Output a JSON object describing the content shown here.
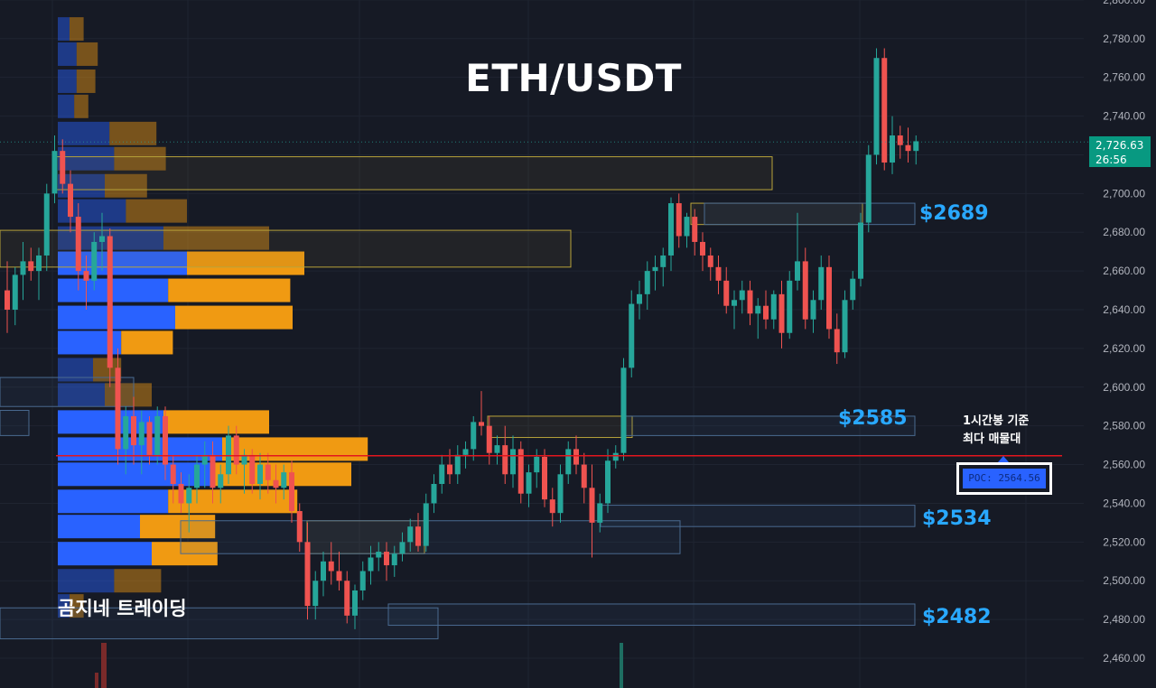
{
  "title": "ETH/USDT",
  "watermark": "곰지네 트레이딩",
  "annotations": {
    "note_line1": "1시간봉 기준",
    "note_line2": "최다 매물대",
    "poc_label": "POC: 2564.56"
  },
  "levels": [
    {
      "label": "$2689",
      "price": 2689
    },
    {
      "label": "$2585",
      "price": 2585
    },
    {
      "label": "$2534",
      "price": 2534
    },
    {
      "label": "$2482",
      "price": 2482
    }
  ],
  "last_price": {
    "value": "2,726.63",
    "countdown": "26:56"
  },
  "colors": {
    "background": "#161a25",
    "up": "#26a69a",
    "down": "#ef5350",
    "accent_blue": "#29a8ff",
    "poc_line": "#e3161e",
    "volume_up": "#2962ff",
    "volume_down": "#f09a12",
    "zone_border_supply": "#b8a33a",
    "zone_border_demand": "#4a6a90",
    "last_price_bg": "#089981"
  },
  "chart_data": {
    "type": "candlestick",
    "title": "ETH/USDT",
    "timeframe_note": "1시간봉 기준",
    "y_axis": {
      "ticks": [
        2460,
        2480,
        2500,
        2520,
        2540,
        2560,
        2580,
        2600,
        2620,
        2640,
        2660,
        2680,
        2700,
        2720,
        2740,
        2760,
        2780,
        2800
      ],
      "tick_labels": [
        "2,460.00",
        "2,480.00",
        "2,500.00",
        "2,520.00",
        "2,540.00",
        "2,560.00",
        "2,580.00",
        "2,600.00",
        "2,620.00",
        "2,640.00",
        "2,660.00",
        "2,680.00",
        "2,700.00",
        "2,720.00",
        "2,740.00",
        "2,760.00",
        "2,780.00",
        "2,800.00"
      ],
      "ylim": [
        2455,
        2800
      ]
    },
    "poc": 2564.56,
    "last_price": 2726.63,
    "candles_ohlc": [
      [
        2650,
        2665,
        2628,
        2640
      ],
      [
        2640,
        2662,
        2632,
        2658
      ],
      [
        2658,
        2675,
        2645,
        2665
      ],
      [
        2665,
        2672,
        2655,
        2660
      ],
      [
        2660,
        2672,
        2645,
        2668
      ],
      [
        2668,
        2705,
        2660,
        2700
      ],
      [
        2700,
        2730,
        2695,
        2722
      ],
      [
        2722,
        2728,
        2700,
        2705
      ],
      [
        2705,
        2712,
        2680,
        2688
      ],
      [
        2688,
        2695,
        2650,
        2660
      ],
      [
        2660,
        2668,
        2640,
        2655
      ],
      [
        2655,
        2680,
        2650,
        2675
      ],
      [
        2675,
        2690,
        2660,
        2678
      ],
      [
        2678,
        2682,
        2600,
        2610
      ],
      [
        2610,
        2620,
        2560,
        2568
      ],
      [
        2568,
        2590,
        2555,
        2585
      ],
      [
        2585,
        2595,
        2560,
        2570
      ],
      [
        2570,
        2588,
        2555,
        2582
      ],
      [
        2582,
        2585,
        2560,
        2565
      ],
      [
        2565,
        2590,
        2560,
        2585
      ],
      [
        2585,
        2590,
        2552,
        2560
      ],
      [
        2560,
        2565,
        2540,
        2550
      ],
      [
        2550,
        2556,
        2535,
        2540
      ],
      [
        2540,
        2555,
        2525,
        2548
      ],
      [
        2548,
        2565,
        2540,
        2560
      ],
      [
        2560,
        2572,
        2548,
        2565
      ],
      [
        2565,
        2572,
        2540,
        2548
      ],
      [
        2548,
        2560,
        2540,
        2555
      ],
      [
        2555,
        2580,
        2550,
        2575
      ],
      [
        2575,
        2580,
        2555,
        2560
      ],
      [
        2560,
        2568,
        2545,
        2565
      ],
      [
        2565,
        2568,
        2545,
        2550
      ],
      [
        2550,
        2566,
        2542,
        2560
      ],
      [
        2560,
        2566,
        2545,
        2552
      ],
      [
        2552,
        2560,
        2540,
        2548
      ],
      [
        2548,
        2560,
        2542,
        2556
      ],
      [
        2556,
        2562,
        2530,
        2536
      ],
      [
        2536,
        2540,
        2515,
        2520
      ],
      [
        2520,
        2530,
        2480,
        2487
      ],
      [
        2487,
        2505,
        2480,
        2500
      ],
      [
        2500,
        2515,
        2492,
        2510
      ],
      [
        2510,
        2520,
        2498,
        2505
      ],
      [
        2505,
        2515,
        2495,
        2500
      ],
      [
        2500,
        2505,
        2478,
        2482
      ],
      [
        2482,
        2498,
        2475,
        2495
      ],
      [
        2495,
        2510,
        2490,
        2505
      ],
      [
        2505,
        2518,
        2498,
        2512
      ],
      [
        2512,
        2520,
        2505,
        2515
      ],
      [
        2515,
        2520,
        2500,
        2508
      ],
      [
        2508,
        2518,
        2502,
        2514
      ],
      [
        2514,
        2525,
        2510,
        2520
      ],
      [
        2520,
        2532,
        2515,
        2528
      ],
      [
        2528,
        2535,
        2515,
        2518
      ],
      [
        2518,
        2545,
        2515,
        2540
      ],
      [
        2540,
        2555,
        2535,
        2550
      ],
      [
        2550,
        2565,
        2545,
        2560
      ],
      [
        2560,
        2568,
        2550,
        2555
      ],
      [
        2555,
        2570,
        2550,
        2565
      ],
      [
        2565,
        2572,
        2558,
        2568
      ],
      [
        2568,
        2585,
        2562,
        2582
      ],
      [
        2582,
        2598,
        2575,
        2580
      ],
      [
        2580,
        2585,
        2560,
        2566
      ],
      [
        2566,
        2575,
        2560,
        2570
      ],
      [
        2570,
        2580,
        2550,
        2555
      ],
      [
        2555,
        2575,
        2548,
        2568
      ],
      [
        2568,
        2572,
        2540,
        2545
      ],
      [
        2545,
        2560,
        2538,
        2556
      ],
      [
        2556,
        2568,
        2548,
        2564
      ],
      [
        2564,
        2568,
        2538,
        2542
      ],
      [
        2542,
        2548,
        2528,
        2535
      ],
      [
        2535,
        2560,
        2530,
        2555
      ],
      [
        2555,
        2572,
        2550,
        2568
      ],
      [
        2568,
        2575,
        2555,
        2560
      ],
      [
        2560,
        2566,
        2540,
        2548
      ],
      [
        2548,
        2560,
        2512,
        2530
      ],
      [
        2530,
        2545,
        2525,
        2540
      ],
      [
        2540,
        2568,
        2535,
        2562
      ],
      [
        2562,
        2570,
        2558,
        2566
      ],
      [
        2566,
        2615,
        2562,
        2610
      ],
      [
        2610,
        2650,
        2605,
        2643
      ],
      [
        2643,
        2655,
        2635,
        2648
      ],
      [
        2648,
        2665,
        2640,
        2660
      ],
      [
        2660,
        2668,
        2650,
        2662
      ],
      [
        2662,
        2672,
        2652,
        2668
      ],
      [
        2668,
        2698,
        2660,
        2695
      ],
      [
        2695,
        2700,
        2672,
        2678
      ],
      [
        2678,
        2690,
        2672,
        2688
      ],
      [
        2688,
        2692,
        2668,
        2675
      ],
      [
        2675,
        2680,
        2660,
        2668
      ],
      [
        2668,
        2672,
        2655,
        2662
      ],
      [
        2662,
        2668,
        2648,
        2655
      ],
      [
        2655,
        2662,
        2638,
        2642
      ],
      [
        2642,
        2650,
        2630,
        2645
      ],
      [
        2645,
        2655,
        2638,
        2650
      ],
      [
        2650,
        2655,
        2632,
        2638
      ],
      [
        2638,
        2646,
        2625,
        2642
      ],
      [
        2642,
        2650,
        2630,
        2635
      ],
      [
        2635,
        2650,
        2630,
        2648
      ],
      [
        2648,
        2655,
        2620,
        2628
      ],
      [
        2628,
        2660,
        2625,
        2655
      ],
      [
        2655,
        2690,
        2650,
        2665
      ],
      [
        2665,
        2672,
        2630,
        2635
      ],
      [
        2635,
        2650,
        2628,
        2645
      ],
      [
        2645,
        2668,
        2640,
        2662
      ],
      [
        2662,
        2668,
        2625,
        2630
      ],
      [
        2630,
        2638,
        2612,
        2618
      ],
      [
        2618,
        2650,
        2615,
        2645
      ],
      [
        2645,
        2660,
        2640,
        2656
      ],
      [
        2656,
        2690,
        2652,
        2685
      ],
      [
        2685,
        2725,
        2680,
        2720
      ],
      [
        2720,
        2775,
        2715,
        2770
      ],
      [
        2770,
        2775,
        2712,
        2716
      ],
      [
        2716,
        2740,
        2710,
        2730
      ],
      [
        2730,
        2735,
        2718,
        2725
      ],
      [
        2725,
        2734,
        2716,
        2722
      ],
      [
        2722,
        2730,
        2715,
        2727
      ]
    ],
    "volume_profile": {
      "price_bins": [
        2785,
        2772,
        2758,
        2745,
        2731,
        2718,
        2704,
        2691,
        2677,
        2664,
        2650,
        2636,
        2623,
        2609,
        2596,
        2582,
        2568,
        2555,
        2541,
        2528,
        2514,
        2500,
        2487
      ],
      "up_volume": [
        5,
        8,
        8,
        7,
        22,
        24,
        20,
        29,
        45,
        55,
        47,
        50,
        27,
        15,
        20,
        45,
        70,
        65,
        47,
        35,
        40,
        24,
        5
      ],
      "down_volume": [
        6,
        9,
        8,
        6,
        20,
        22,
        18,
        26,
        45,
        50,
        52,
        50,
        22,
        12,
        20,
        45,
        62,
        60,
        55,
        32,
        28,
        20,
        6
      ]
    },
    "zones": [
      {
        "type": "supply",
        "from": 2702,
        "to": 2719
      },
      {
        "type": "supply",
        "from": 2662,
        "to": 2681
      },
      {
        "type": "supply",
        "from": 2684,
        "to": 2695
      },
      {
        "type": "demand",
        "from": 2684,
        "to": 2695
      },
      {
        "type": "supply",
        "from": 2574,
        "to": 2585
      },
      {
        "type": "demand",
        "from": 2575,
        "to": 2585
      },
      {
        "type": "demand",
        "from": 2528,
        "to": 2539
      },
      {
        "type": "supply",
        "from": 2514,
        "to": 2531
      },
      {
        "type": "demand",
        "from": 2514,
        "to": 2531
      },
      {
        "type": "demand",
        "from": 2477,
        "to": 2488
      },
      {
        "type": "demand",
        "from": 2470,
        "to": 2486
      },
      {
        "type": "demand",
        "from": 2590,
        "to": 2605
      },
      {
        "type": "demand",
        "from": 2575,
        "to": 2588
      }
    ]
  }
}
